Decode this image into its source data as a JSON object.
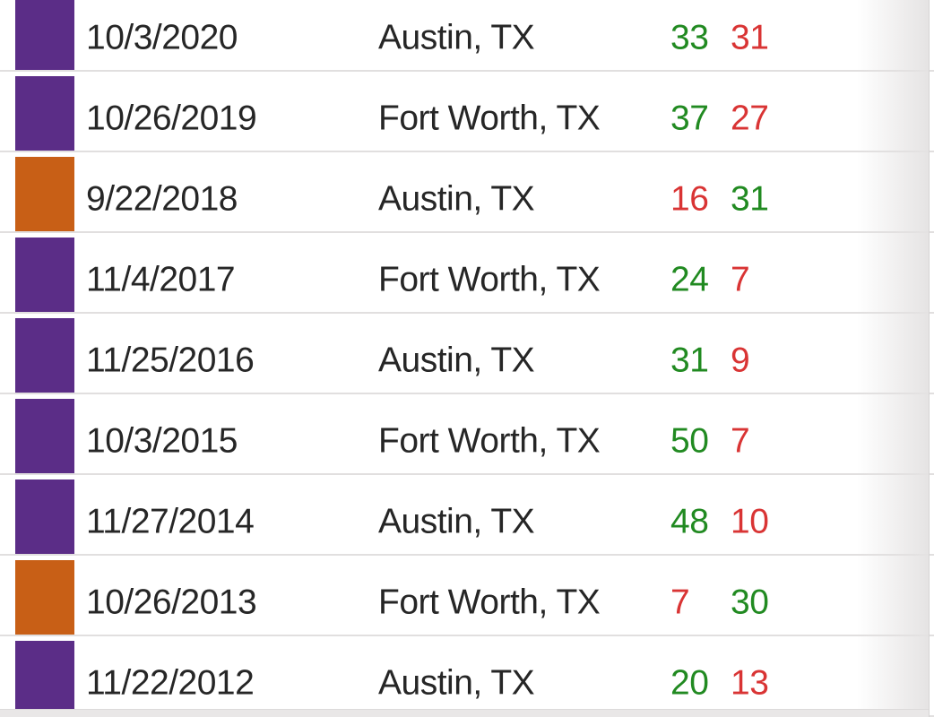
{
  "table": {
    "description_columns": [
      "winner-color-block",
      "date",
      "location",
      "score-left",
      "score-right"
    ],
    "accent_colors": {
      "purple": "#5b2d87",
      "orange": "#c85f16"
    },
    "score_colors": {
      "win": "#218a21",
      "loss": "#d93434"
    },
    "divider_color": "#e1dfdf",
    "rows": [
      {
        "date": "10/3/2020",
        "location": "Austin, TX",
        "score_left": "33",
        "score_left_result": "win",
        "score_right": "31",
        "score_right_result": "loss",
        "winner_color": "purple"
      },
      {
        "date": "10/26/2019",
        "location": "Fort Worth, TX",
        "score_left": "37",
        "score_left_result": "win",
        "score_right": "27",
        "score_right_result": "loss",
        "winner_color": "purple"
      },
      {
        "date": "9/22/2018",
        "location": "Austin, TX",
        "score_left": "16",
        "score_left_result": "loss",
        "score_right": "31",
        "score_right_result": "win",
        "winner_color": "orange"
      },
      {
        "date": "11/4/2017",
        "location": "Fort Worth, TX",
        "score_left": "24",
        "score_left_result": "win",
        "score_right": "7",
        "score_right_result": "loss",
        "winner_color": "purple"
      },
      {
        "date": "11/25/2016",
        "location": "Austin, TX",
        "score_left": "31",
        "score_left_result": "win",
        "score_right": "9",
        "score_right_result": "loss",
        "winner_color": "purple"
      },
      {
        "date": "10/3/2015",
        "location": "Fort Worth, TX",
        "score_left": "50",
        "score_left_result": "win",
        "score_right": "7",
        "score_right_result": "loss",
        "winner_color": "purple"
      },
      {
        "date": "11/27/2014",
        "location": "Austin, TX",
        "score_left": "48",
        "score_left_result": "win",
        "score_right": "10",
        "score_right_result": "loss",
        "winner_color": "purple"
      },
      {
        "date": "10/26/2013",
        "location": "Fort Worth, TX",
        "score_left": "7",
        "score_left_result": "loss",
        "score_right": "30",
        "score_right_result": "win",
        "winner_color": "orange"
      },
      {
        "date": "11/22/2012",
        "location": "Austin, TX",
        "score_left": "20",
        "score_left_result": "win",
        "score_right": "13",
        "score_right_result": "loss",
        "winner_color": "purple"
      }
    ]
  }
}
